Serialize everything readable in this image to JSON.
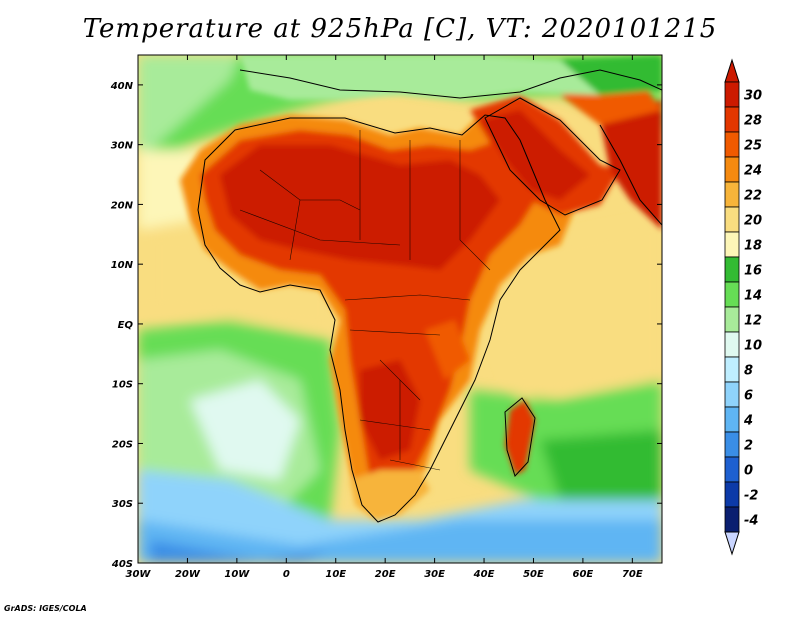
{
  "title": "Temperature at 925hPa [C], VT: 2020101215",
  "credit": "GrADS: IGES/COLA",
  "map": {
    "lon_range": [
      -30,
      76
    ],
    "lat_range": [
      -40,
      45
    ],
    "lon_ticks": [
      "30W",
      "20W",
      "10W",
      "0",
      "10E",
      "20E",
      "30E",
      "40E",
      "50E",
      "60E",
      "70E"
    ],
    "lat_ticks": [
      "40N",
      "30N",
      "20N",
      "10N",
      "EQ",
      "10S",
      "20S",
      "30S",
      "40S"
    ]
  },
  "colorbar": {
    "levels": [
      "30",
      "28",
      "25",
      "24",
      "22",
      "20",
      "18",
      "16",
      "14",
      "12",
      "10",
      "8",
      "6",
      "4",
      "2",
      "0",
      "-2",
      "-4"
    ],
    "colors": [
      "#cc1a00",
      "#e33700",
      "#f05a00",
      "#f58a10",
      "#f7b43a",
      "#f9dd80",
      "#fdf6b8",
      "#33bb33",
      "#66dd55",
      "#a8eb9a",
      "#e0f9f0",
      "#bfeeff",
      "#8fd3fb",
      "#5fb5f3",
      "#3a8ee6",
      "#1e60d0",
      "#0c3aa8",
      "#0a1f70"
    ],
    "top_arrow_color": "#cc1a00",
    "bottom_arrow_color": "#c9d5ff"
  },
  "background_colors": {
    "ocean_warm": "#f9dd80",
    "ocean_cool": "#a8eb9a",
    "land_hot": "#cc1a00",
    "land_warm": "#f05a00"
  }
}
